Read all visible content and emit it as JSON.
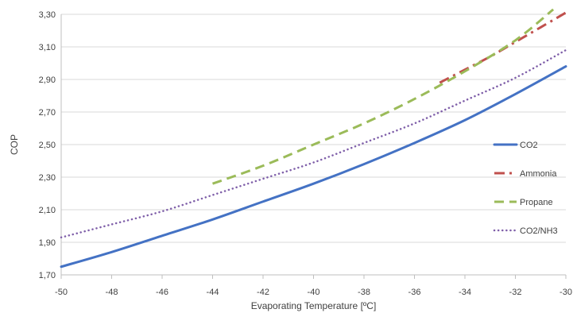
{
  "chart_data": {
    "type": "line",
    "title": "",
    "xlabel": "Evaporating Temperature [ºC]",
    "ylabel": "COP",
    "xlim": [
      -50,
      -30
    ],
    "ylim": [
      1.7,
      3.3
    ],
    "x_ticks": [
      -50,
      -48,
      -46,
      -44,
      -42,
      -40,
      -38,
      -36,
      -34,
      -32,
      -30
    ],
    "y_ticks": [
      1.7,
      1.9,
      2.1,
      2.3,
      2.5,
      2.7,
      2.9,
      3.1,
      3.3
    ],
    "x_tick_labels": [
      "-50",
      "-48",
      "-46",
      "-44",
      "-42",
      "-40",
      "-38",
      "-36",
      "-34",
      "-32",
      "-30"
    ],
    "y_tick_labels": [
      "1,70",
      "1,90",
      "2,10",
      "2,30",
      "2,50",
      "2,70",
      "2,90",
      "3,10",
      "3,30"
    ],
    "grid": "horizontal",
    "legend_position": "right",
    "series": [
      {
        "name": "CO2",
        "color": "#4472C4",
        "style": "solid",
        "x": [
          -50,
          -48,
          -46,
          -44,
          -42,
          -40,
          -38,
          -36,
          -34,
          -32,
          -30
        ],
        "y": [
          1.75,
          1.84,
          1.94,
          2.04,
          2.15,
          2.26,
          2.38,
          2.51,
          2.65,
          2.81,
          2.98
        ]
      },
      {
        "name": "Ammonia",
        "color": "#C0504D",
        "style": "dashdot",
        "x": [
          -35,
          -34,
          -33,
          -32,
          -31,
          -30
        ],
        "y": [
          2.88,
          2.96,
          3.04,
          3.13,
          3.22,
          3.31
        ]
      },
      {
        "name": "Propane",
        "color": "#9BBB59",
        "style": "dashed",
        "x": [
          -44,
          -42,
          -40,
          -38,
          -36,
          -34,
          -32,
          -30.5
        ],
        "y": [
          2.26,
          2.37,
          2.5,
          2.63,
          2.78,
          2.95,
          3.14,
          3.33
        ]
      },
      {
        "name": "CO2/NH3",
        "color": "#7F5FA9",
        "style": "dotted",
        "x": [
          -50,
          -48,
          -46,
          -44,
          -42,
          -40,
          -38,
          -36,
          -34,
          -32,
          -30
        ],
        "y": [
          1.93,
          2.01,
          2.09,
          2.19,
          2.29,
          2.39,
          2.51,
          2.63,
          2.77,
          2.91,
          3.08
        ]
      }
    ]
  }
}
